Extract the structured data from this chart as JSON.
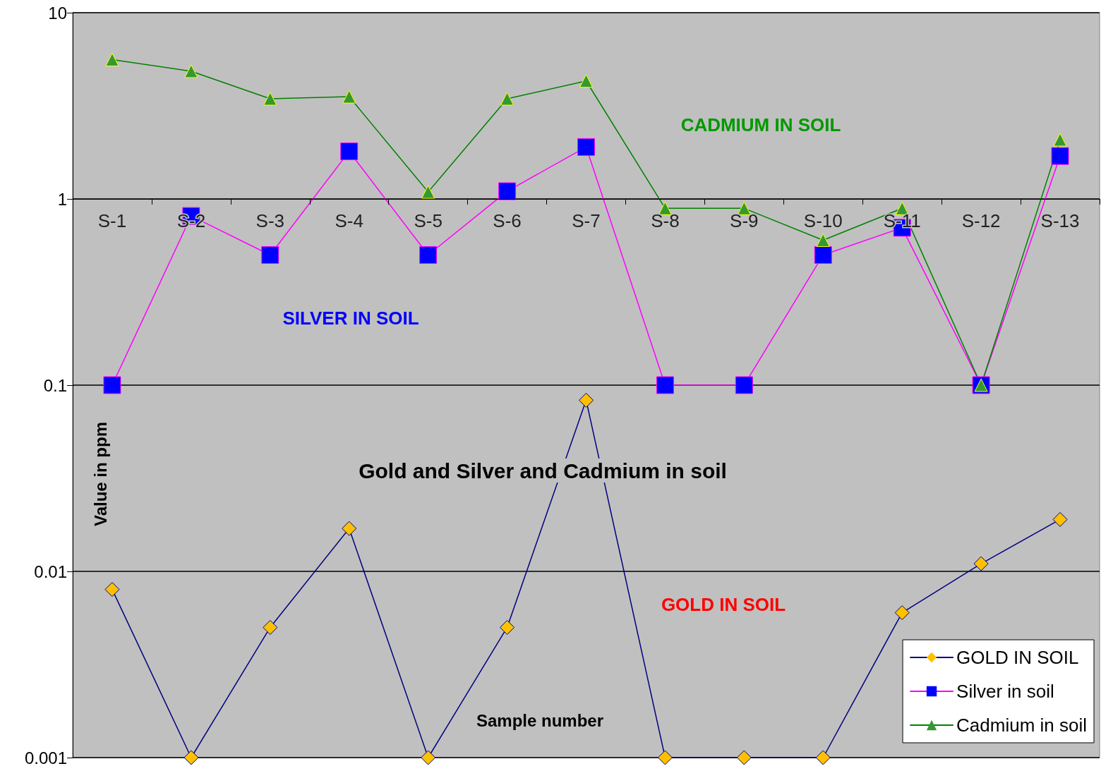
{
  "chart_data": {
    "type": "line",
    "title": "Gold and Silver and Cadmium in soil",
    "xlabel": "Sample number",
    "ylabel": "Value in ppm",
    "categories": [
      "S-1",
      "S-2",
      "S-3",
      "S-4",
      "S-5",
      "S-6",
      "S-7",
      "S-8",
      "S-9",
      "S-10",
      "S-11",
      "S-12",
      "S-13"
    ],
    "series": [
      {
        "name": "GOLD IN SOIL",
        "color": "#000080",
        "marker": "diamond",
        "colors": [
          "#ffc000",
          "#ffc000",
          "#ffc000",
          "#ffc000",
          "#ffc000",
          "#ffc000",
          "#ffc000",
          "#ffc000",
          "#ffc000",
          "#ffc000",
          "#ffc000",
          "#ffc000",
          "#ffc000"
        ],
        "values": [
          0.008,
          0.001,
          0.005,
          0.017,
          0.001,
          0.005,
          0.083,
          0.001,
          0.001,
          0.001,
          0.006,
          0.011,
          0.019
        ]
      },
      {
        "name": "Silver in soil",
        "color": "#ff00ff",
        "marker": "square",
        "colors": [
          "#0000ff",
          "#0000ff",
          "#0000ff",
          "#0000ff",
          "#0000ff",
          "#0000ff",
          "#0000ff",
          "#0000ff",
          "#0000ff",
          "#0000ff",
          "#0000ff",
          "#0000ff",
          "#0000ff"
        ],
        "values": [
          0.1,
          0.81,
          0.5,
          1.8,
          0.5,
          1.1,
          1.9,
          0.1,
          0.1,
          0.5,
          0.7,
          0.1,
          1.7
        ]
      },
      {
        "name": "Cadmium in soil",
        "color": "#008000",
        "marker": "triangle",
        "colors": [
          "#339933",
          "#339933",
          "#339933",
          "#339933",
          "#339933",
          "#339933",
          "#339933",
          "#339933",
          "#339933",
          "#339933",
          "#339933",
          "#339933",
          "#339933"
        ],
        "values": [
          5.6,
          4.85,
          3.45,
          3.54,
          1.09,
          3.45,
          4.3,
          0.89,
          0.89,
          0.6,
          0.89,
          0.1,
          2.08
        ]
      }
    ],
    "annotations": [
      "CADMIUM IN SOIL",
      "SILVER IN SOIL",
      "GOLD IN SOIL"
    ],
    "ylim": [
      0.001,
      10
    ],
    "yticks": [
      0.001,
      0.01,
      0.1,
      1,
      10
    ],
    "log": true,
    "grid": "y",
    "legend": "bottom right",
    "line_style": "solid"
  }
}
